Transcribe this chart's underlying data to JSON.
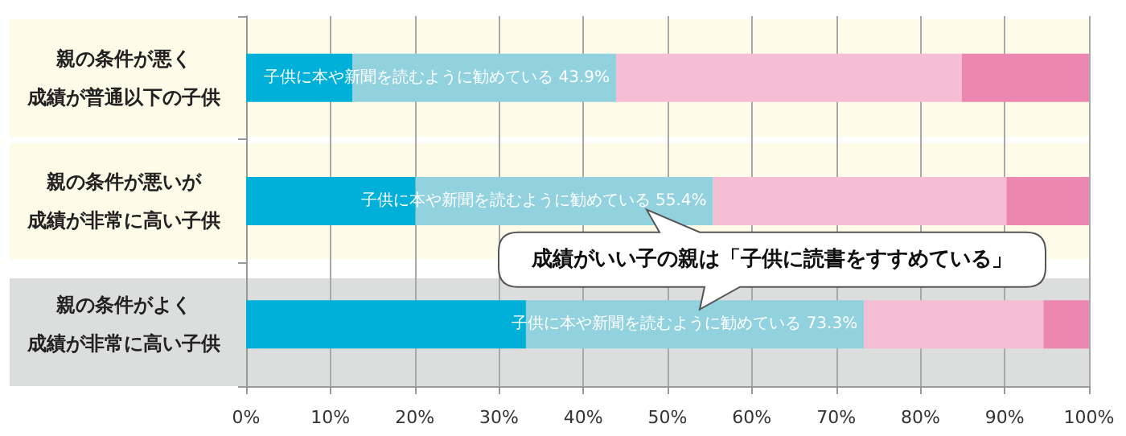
{
  "chart_data": {
    "type": "bar",
    "orientation": "horizontal",
    "stacked": true,
    "categories": [
      "親の条件が悪く成績が普通以下の子供",
      "親の条件が悪いが成績が非常に高い子供",
      "親の条件がよく成績が非常に高い子供"
    ],
    "series": [
      {
        "color": "#00b0d8",
        "values": [
          12.6,
          20.1,
          33.2
        ]
      },
      {
        "color": "#92d1de",
        "values": [
          31.3,
          35.3,
          40.1
        ]
      },
      {
        "color": "#f5bed5",
        "values": [
          41.0,
          34.8,
          21.3
        ]
      },
      {
        "color": "#ec87b1",
        "values": [
          15.1,
          9.8,
          5.4
        ]
      }
    ],
    "xlim": [
      0,
      100
    ],
    "xticks": [
      {
        "value": 0,
        "label": "0%"
      },
      {
        "value": 10,
        "label": "10%"
      },
      {
        "value": 20,
        "label": "20%"
      },
      {
        "value": 30,
        "label": "30%"
      },
      {
        "value": 40,
        "label": "40%"
      },
      {
        "value": 50,
        "label": "50%"
      },
      {
        "value": 60,
        "label": "60%"
      },
      {
        "value": 70,
        "label": "70%"
      },
      {
        "value": 80,
        "label": "80%"
      },
      {
        "value": 90,
        "label": "90%"
      },
      {
        "value": 100,
        "label": "100%"
      }
    ],
    "grid": "x",
    "bands": [
      {
        "axis": "y",
        "from": "親の条件がよく成績が非常に高い子供",
        "to": "親の条件がよく成績が非常に高い子供",
        "color": "#dcdddd"
      }
    ],
    "annotations": [
      {
        "text": "子供に本や新聞を読むように勧めている 43.9%",
        "x": 43.9,
        "y": "親の条件が悪く成績が普通以下の子供"
      },
      {
        "text": "子供に本や新聞を読むように勧めている 55.4%",
        "x": 55.4,
        "y": "親の条件が悪いが成績が非常に高い子供"
      },
      {
        "text": "子供に本や新聞を読むように勧めている 73.3%",
        "x": 73.3,
        "y": "親の条件がよく成績が非常に高い子供"
      },
      "成績がいい子の親は「子供に読書をすすめている」"
    ]
  }
}
